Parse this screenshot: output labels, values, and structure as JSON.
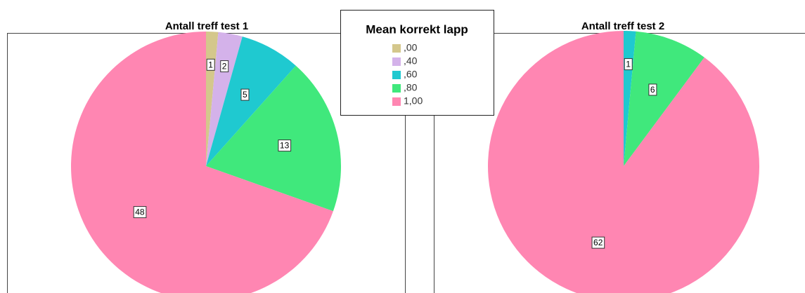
{
  "chart_data": [
    {
      "type": "pie",
      "title": "Antall treff test 1",
      "categories": [
        ",00",
        ",40",
        ",60",
        ",80",
        "1,00"
      ],
      "values": [
        1,
        2,
        5,
        13,
        48
      ],
      "colors": [
        "#d4c78c",
        "#d4b2ea",
        "#1fc9d0",
        "#40e87c",
        "#ff86b2"
      ]
    },
    {
      "type": "pie",
      "title": "Antall treff test 2",
      "categories": [
        ",60",
        ",80",
        "1,00"
      ],
      "values": [
        1,
        6,
        62
      ],
      "colors": [
        "#1fc9d0",
        "#40e87c",
        "#ff86b2"
      ]
    }
  ],
  "legend": {
    "title": "Mean korrekt lapp",
    "entries": [
      {
        "label": ",00",
        "color": "#d4c78c"
      },
      {
        "label": ",40",
        "color": "#d4b2ea"
      },
      {
        "label": ",60",
        "color": "#1fc9d0"
      },
      {
        "label": ",80",
        "color": "#40e87c"
      },
      {
        "label": "1,00",
        "color": "#ff86b2"
      }
    ]
  }
}
